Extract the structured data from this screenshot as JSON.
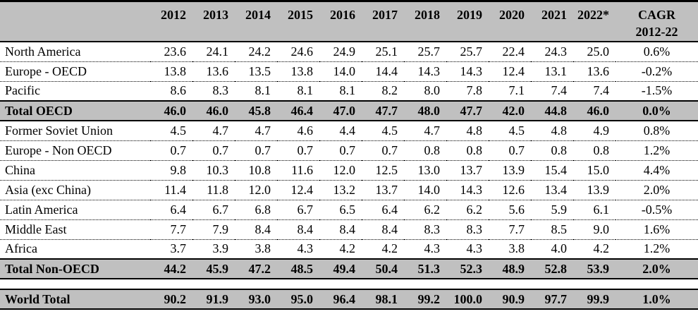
{
  "chart_data": {
    "type": "table",
    "columns": [
      "2012",
      "2013",
      "2014",
      "2015",
      "2016",
      "2017",
      "2018",
      "2019",
      "2020",
      "2021",
      "2022*"
    ],
    "cagr_header": [
      "CAGR",
      "2012-22"
    ],
    "rows": [
      {
        "label": "North America",
        "style": "normal",
        "values": [
          23.6,
          24.1,
          24.2,
          24.6,
          24.9,
          25.1,
          25.7,
          25.7,
          22.4,
          24.3,
          25.0
        ],
        "cagr": "0.6%"
      },
      {
        "label": "Europe - OECD",
        "style": "normal",
        "values": [
          13.8,
          13.6,
          13.5,
          13.8,
          14.0,
          14.4,
          14.3,
          14.3,
          12.4,
          13.1,
          13.6
        ],
        "cagr": "-0.2%"
      },
      {
        "label": "Pacific",
        "style": "normal",
        "values": [
          8.6,
          8.3,
          8.1,
          8.1,
          8.1,
          8.2,
          8.0,
          7.8,
          7.1,
          7.4,
          7.4
        ],
        "cagr": "-1.5%"
      },
      {
        "label": "Total OECD",
        "style": "total",
        "values": [
          46.0,
          46.0,
          45.8,
          46.4,
          47.0,
          47.7,
          48.0,
          47.7,
          42.0,
          44.8,
          46.0
        ],
        "cagr": "0.0%"
      },
      {
        "label": "Former Soviet Union",
        "style": "normal",
        "values": [
          4.5,
          4.7,
          4.7,
          4.6,
          4.4,
          4.5,
          4.7,
          4.8,
          4.5,
          4.8,
          4.9
        ],
        "cagr": "0.8%"
      },
      {
        "label": "Europe - Non OECD",
        "style": "normal",
        "values": [
          0.7,
          0.7,
          0.7,
          0.7,
          0.7,
          0.7,
          0.8,
          0.8,
          0.7,
          0.8,
          0.8
        ],
        "cagr": "1.2%"
      },
      {
        "label": "China",
        "style": "normal",
        "values": [
          9.8,
          10.3,
          10.8,
          11.6,
          12.0,
          12.5,
          13.0,
          13.7,
          13.9,
          15.4,
          15.0
        ],
        "cagr": "4.4%"
      },
      {
        "label": "Asia (exc China)",
        "style": "normal",
        "values": [
          11.4,
          11.8,
          12.0,
          12.4,
          13.2,
          13.7,
          14.0,
          14.3,
          12.6,
          13.4,
          13.9
        ],
        "cagr": "2.0%"
      },
      {
        "label": "Latin America",
        "style": "normal",
        "values": [
          6.4,
          6.7,
          6.8,
          6.7,
          6.5,
          6.4,
          6.2,
          6.2,
          5.6,
          5.9,
          6.1
        ],
        "cagr": "-0.5%"
      },
      {
        "label": "Middle East",
        "style": "normal",
        "values": [
          7.7,
          7.9,
          8.4,
          8.4,
          8.4,
          8.4,
          8.3,
          8.3,
          7.7,
          8.5,
          9.0
        ],
        "cagr": "1.6%"
      },
      {
        "label": "Africa",
        "style": "normal",
        "values": [
          3.7,
          3.9,
          3.8,
          4.3,
          4.2,
          4.2,
          4.3,
          4.3,
          3.8,
          4.0,
          4.2
        ],
        "cagr": "1.2%"
      },
      {
        "label": "Total Non-OECD",
        "style": "total",
        "values": [
          44.2,
          45.9,
          47.2,
          48.5,
          49.4,
          50.4,
          51.3,
          52.3,
          48.9,
          52.8,
          53.9
        ],
        "cagr": "2.0%"
      },
      {
        "label": "",
        "style": "spacer",
        "values": [],
        "cagr": ""
      },
      {
        "label": "World Total",
        "style": "total",
        "values": [
          90.2,
          91.9,
          93.0,
          95.0,
          96.4,
          98.1,
          99.2,
          100.0,
          90.9,
          97.7,
          99.9
        ],
        "cagr": "1.0%"
      }
    ],
    "layout": {
      "first_column_header": "",
      "value_format": "one-decimal",
      "grid": "dotted-between-rows, solid-around-totals"
    }
  },
  "colors": {
    "header_bg": "#c0c0c0",
    "total_row_bg": "#c0c0c0",
    "border": "#000000",
    "text": "#000000",
    "page_bg": "#ffffff"
  }
}
